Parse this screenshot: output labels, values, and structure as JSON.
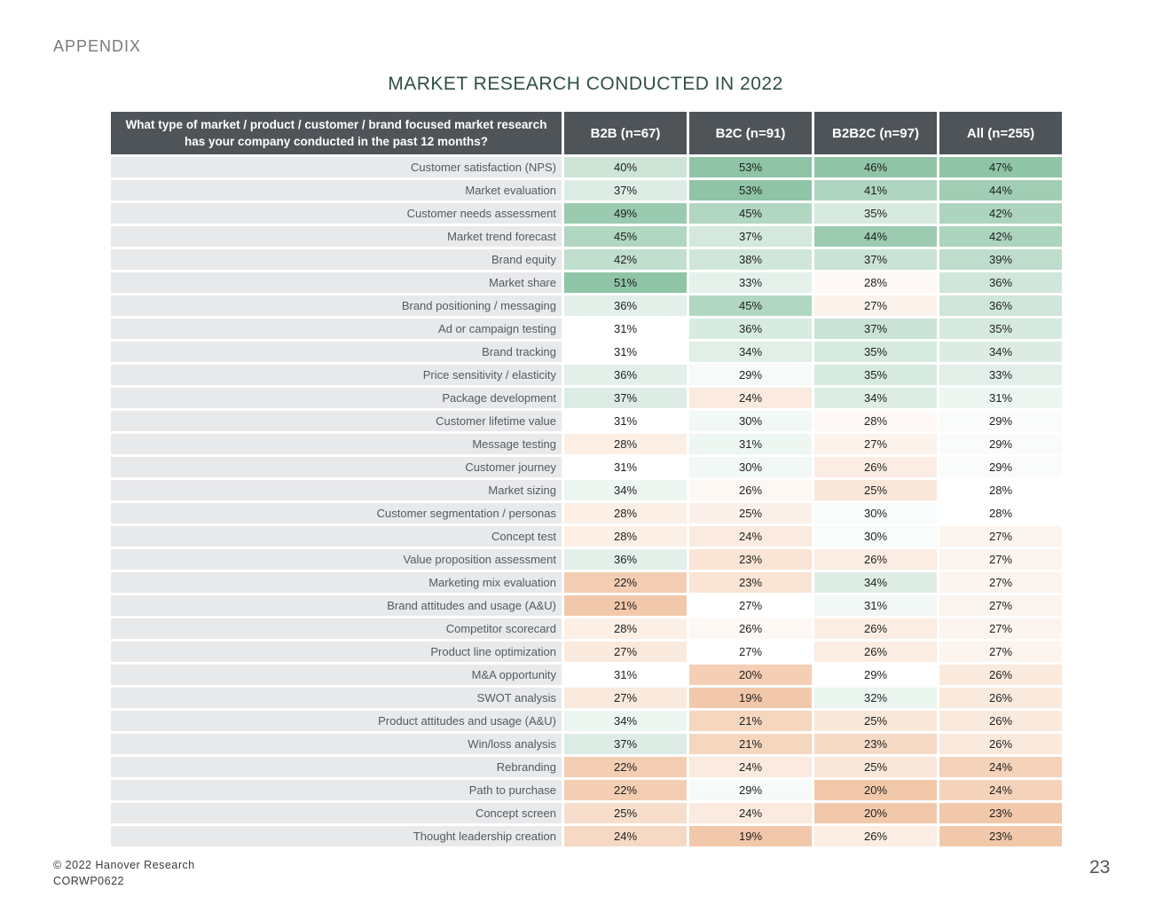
{
  "section_label": "APPENDIX",
  "title": "MARKET RESEARCH CONDUCTED IN 2022",
  "table": {
    "question_header": "What type of market / product / customer / brand focused market research has your company conducted in the past 12 months?",
    "columns": [
      "B2B (n=67)",
      "B2C (n=91)",
      "B2B2C (n=97)",
      "All (n=255)"
    ],
    "rows": [
      {
        "label": "Customer satisfaction (NPS)",
        "values": [
          "40%",
          "53%",
          "46%",
          "47%"
        ]
      },
      {
        "label": "Market evaluation",
        "values": [
          "37%",
          "53%",
          "41%",
          "44%"
        ]
      },
      {
        "label": "Customer needs assessment",
        "values": [
          "49%",
          "45%",
          "35%",
          "42%"
        ]
      },
      {
        "label": "Market trend forecast",
        "values": [
          "45%",
          "37%",
          "44%",
          "42%"
        ]
      },
      {
        "label": "Brand equity",
        "values": [
          "42%",
          "38%",
          "37%",
          "39%"
        ]
      },
      {
        "label": "Market share",
        "values": [
          "51%",
          "33%",
          "28%",
          "36%"
        ]
      },
      {
        "label": "Brand positioning / messaging",
        "values": [
          "36%",
          "45%",
          "27%",
          "36%"
        ]
      },
      {
        "label": "Ad or campaign testing",
        "values": [
          "31%",
          "36%",
          "37%",
          "35%"
        ]
      },
      {
        "label": "Brand tracking",
        "values": [
          "31%",
          "34%",
          "35%",
          "34%"
        ]
      },
      {
        "label": "Price sensitivity / elasticity",
        "values": [
          "36%",
          "29%",
          "35%",
          "33%"
        ]
      },
      {
        "label": "Package development",
        "values": [
          "37%",
          "24%",
          "34%",
          "31%"
        ]
      },
      {
        "label": "Customer lifetime value",
        "values": [
          "31%",
          "30%",
          "28%",
          "29%"
        ]
      },
      {
        "label": "Message testing",
        "values": [
          "28%",
          "31%",
          "27%",
          "29%"
        ]
      },
      {
        "label": "Customer journey",
        "values": [
          "31%",
          "30%",
          "26%",
          "29%"
        ]
      },
      {
        "label": "Market sizing",
        "values": [
          "34%",
          "26%",
          "25%",
          "28%"
        ]
      },
      {
        "label": "Customer segmentation / personas",
        "values": [
          "28%",
          "25%",
          "30%",
          "28%"
        ]
      },
      {
        "label": "Concept test",
        "values": [
          "28%",
          "24%",
          "30%",
          "27%"
        ]
      },
      {
        "label": "Value proposition assessment",
        "values": [
          "36%",
          "23%",
          "26%",
          "27%"
        ]
      },
      {
        "label": "Marketing mix evaluation",
        "values": [
          "22%",
          "23%",
          "34%",
          "27%"
        ]
      },
      {
        "label": "Brand attitudes and usage (A&U)",
        "values": [
          "21%",
          "27%",
          "31%",
          "27%"
        ]
      },
      {
        "label": "Competitor scorecard",
        "values": [
          "28%",
          "26%",
          "26%",
          "27%"
        ]
      },
      {
        "label": "Product line optimization",
        "values": [
          "27%",
          "27%",
          "26%",
          "27%"
        ]
      },
      {
        "label": "M&A opportunity",
        "values": [
          "31%",
          "20%",
          "29%",
          "26%"
        ]
      },
      {
        "label": "SWOT analysis",
        "values": [
          "27%",
          "19%",
          "32%",
          "26%"
        ]
      },
      {
        "label": "Product attitudes and usage (A&U)",
        "values": [
          "34%",
          "21%",
          "25%",
          "26%"
        ]
      },
      {
        "label": "Win/loss analysis",
        "values": [
          "37%",
          "21%",
          "23%",
          "26%"
        ]
      },
      {
        "label": "Rebranding",
        "values": [
          "22%",
          "24%",
          "25%",
          "24%"
        ]
      },
      {
        "label": "Path to purchase",
        "values": [
          "22%",
          "29%",
          "20%",
          "24%"
        ]
      },
      {
        "label": "Concept screen",
        "values": [
          "25%",
          "24%",
          "20%",
          "23%"
        ]
      },
      {
        "label": "Thought leadership creation",
        "values": [
          "24%",
          "19%",
          "26%",
          "23%"
        ]
      }
    ]
  },
  "colors": {
    "header_bg": "#4f5459",
    "label_bg": "#e8e9eb",
    "title": "#2f4f47",
    "heat_high": "#8fc4a7",
    "heat_mid": "#ffffff",
    "heat_low": "#f2c8aa"
  },
  "footer": {
    "copyright": "© 2022 Hanover Research",
    "code": "CORWP0622",
    "page_number": "23"
  }
}
